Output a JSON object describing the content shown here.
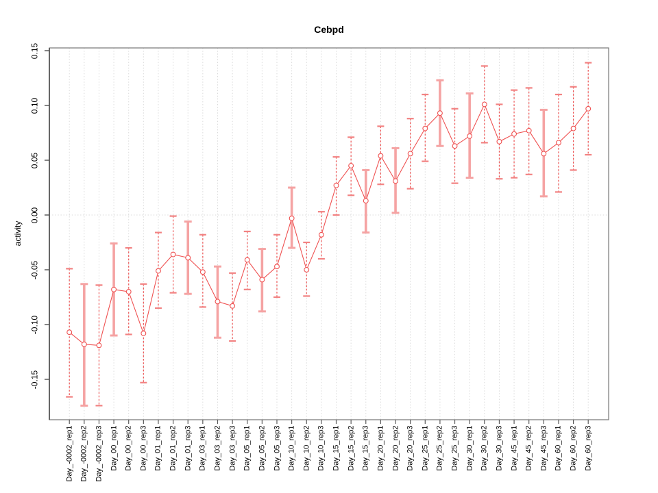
{
  "chart_data": {
    "type": "line",
    "title": "Cebpd",
    "ylabel": "activity",
    "xlabel": "",
    "ylim": [
      -0.187,
      0.152
    ],
    "yticks": [
      0.15,
      0.1,
      0.05,
      0.0,
      -0.05,
      -0.1,
      -0.15
    ],
    "ytick_labels": [
      "0.15",
      "0.10",
      "0.05",
      "0.00",
      "-0.05",
      "-0.10",
      "-0.15"
    ],
    "grid": {
      "vertical_per_category": true,
      "horizontal_at": [
        0
      ],
      "style": "dotted"
    },
    "legend_position": "none",
    "categories": [
      "Day_-0002_rep1",
      "Day_-0002_rep2",
      "Day_-0002_rep3",
      "Day_00_rep1",
      "Day_00_rep2",
      "Day_00_rep3",
      "Day_01_rep1",
      "Day_01_rep2",
      "Day_01_rep3",
      "Day_03_rep1",
      "Day_03_rep2",
      "Day_03_rep3",
      "Day_05_rep1",
      "Day_05_rep2",
      "Day_05_rep3",
      "Day_10_rep1",
      "Day_10_rep2",
      "Day_10_rep3",
      "Day_15_rep1",
      "Day_15_rep2",
      "Day_15_rep3",
      "Day_20_rep1",
      "Day_20_rep2",
      "Day_20_rep3",
      "Day_25_rep1",
      "Day_25_rep2",
      "Day_25_rep3",
      "Day_30_rep1",
      "Day_30_rep2",
      "Day_30_rep3",
      "Day_45_rep1",
      "Day_45_rep2",
      "Day_45_rep3",
      "Day_60_rep1",
      "Day_60_rep2",
      "Day_60_rep3"
    ],
    "series": [
      {
        "name": "activity",
        "values": [
          -0.107,
          -0.118,
          -0.119,
          -0.068,
          -0.07,
          -0.108,
          -0.051,
          -0.036,
          -0.039,
          -0.052,
          -0.079,
          -0.083,
          -0.041,
          -0.059,
          -0.047,
          -0.003,
          -0.05,
          -0.018,
          0.027,
          0.045,
          0.013,
          0.054,
          0.031,
          0.056,
          0.079,
          0.093,
          0.063,
          0.072,
          0.101,
          0.067,
          0.074,
          0.077,
          0.056,
          0.066,
          0.079,
          0.097
        ],
        "error_high": [
          -0.049,
          -0.063,
          -0.064,
          -0.026,
          -0.03,
          -0.063,
          -0.016,
          -0.001,
          -0.006,
          -0.018,
          -0.047,
          -0.053,
          -0.015,
          -0.031,
          -0.018,
          0.025,
          -0.025,
          0.003,
          0.053,
          0.071,
          0.041,
          0.081,
          0.061,
          0.088,
          0.11,
          0.123,
          0.097,
          0.111,
          0.136,
          0.101,
          0.114,
          0.116,
          0.096,
          0.11,
          0.117,
          0.139
        ],
        "error_low": [
          -0.166,
          -0.174,
          -0.174,
          -0.11,
          -0.109,
          -0.153,
          -0.085,
          -0.071,
          -0.072,
          -0.084,
          -0.112,
          -0.115,
          -0.068,
          -0.088,
          -0.075,
          -0.03,
          -0.074,
          -0.04,
          0.0,
          0.018,
          -0.016,
          0.028,
          0.002,
          0.024,
          0.049,
          0.063,
          0.029,
          0.034,
          0.066,
          0.033,
          0.034,
          0.037,
          0.017,
          0.021,
          0.041,
          0.055
        ],
        "bar_styles": [
          "thin",
          "thick",
          "thin",
          "thick",
          "thin",
          "thin",
          "thin",
          "thin",
          "thick",
          "thin",
          "thick",
          "thin",
          "thin",
          "thick",
          "thin",
          "thick",
          "thin",
          "thin",
          "thin",
          "thin",
          "thick",
          "thin",
          "thick",
          "thin",
          "thin",
          "thick",
          "thin",
          "thick",
          "thin",
          "thin",
          "thin",
          "thin",
          "thick",
          "thin",
          "thin",
          "thin"
        ]
      }
    ],
    "colors": {
      "line": "#ef5252",
      "point_stroke": "#ef5252",
      "point_fill": "#ffffff",
      "error_thin": "#ee5555",
      "error_thick": "#f5a3a3",
      "cap_thin": "#f28282",
      "grid": "#dadada",
      "axis_box": "#7f7f7f",
      "axis_tick": "#5a5a5a",
      "text": "#000000"
    }
  }
}
